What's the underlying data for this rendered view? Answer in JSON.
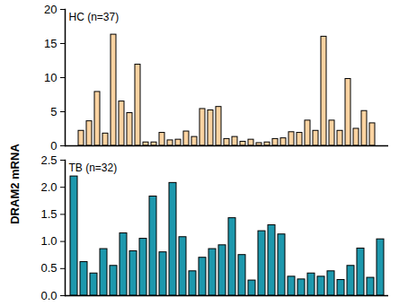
{
  "chart_data": [
    {
      "type": "bar",
      "title": "HC (n=37)",
      "color": "#fbd3a1",
      "categories": [
        null,
        null,
        null,
        null,
        null,
        null,
        null,
        null,
        null,
        null,
        null,
        null,
        null,
        null,
        null,
        null,
        null,
        null,
        null,
        null,
        null,
        null,
        null,
        null,
        null,
        null,
        null,
        null,
        null,
        null,
        null,
        null,
        null,
        null,
        null,
        null,
        null
      ],
      "values": [
        2.2,
        3.6,
        7.9,
        1.8,
        16.3,
        6.5,
        4.8,
        11.9,
        0.5,
        0.5,
        1.9,
        0.8,
        0.9,
        2.1,
        1.3,
        5.4,
        5.2,
        5.7,
        1.0,
        1.3,
        0.6,
        0.9,
        0.4,
        0.5,
        1.0,
        1.1,
        2.0,
        1.9,
        3.7,
        2.2,
        16.0,
        3.7,
        2.2,
        9.8,
        2.5,
        5.1,
        3.3
      ],
      "ylim": [
        0,
        20
      ],
      "yticks": [
        0,
        5,
        10,
        15,
        20
      ],
      "tick_labels": "y"
    },
    {
      "type": "bar",
      "title": "TB (n=32)",
      "color": "#1d98ad",
      "y_label": "DRAM2 mRNA",
      "categories": [
        null,
        null,
        null,
        null,
        null,
        null,
        null,
        null,
        null,
        null,
        null,
        null,
        null,
        null,
        null,
        null,
        null,
        null,
        null,
        null,
        null,
        null,
        null,
        null,
        null,
        null,
        null,
        null,
        null,
        null,
        null,
        null
      ],
      "values": [
        2.2,
        0.62,
        0.41,
        0.86,
        0.55,
        1.15,
        0.82,
        1.05,
        1.83,
        0.8,
        2.08,
        1.08,
        0.45,
        0.7,
        0.86,
        0.93,
        1.43,
        0.75,
        0.28,
        1.19,
        1.3,
        1.13,
        0.35,
        0.3,
        0.41,
        0.35,
        0.45,
        0.29,
        0.55,
        0.87,
        0.33,
        1.04
      ],
      "ylim": [
        0,
        2.5
      ],
      "yticks": [
        {
          "value": 0,
          "label": "0.0"
        },
        0.5,
        {
          "value": 1,
          "label": "1.0"
        },
        1.5,
        {
          "value": 2,
          "label": "2.0"
        },
        2.5
      ],
      "tick_labels": "y"
    }
  ]
}
